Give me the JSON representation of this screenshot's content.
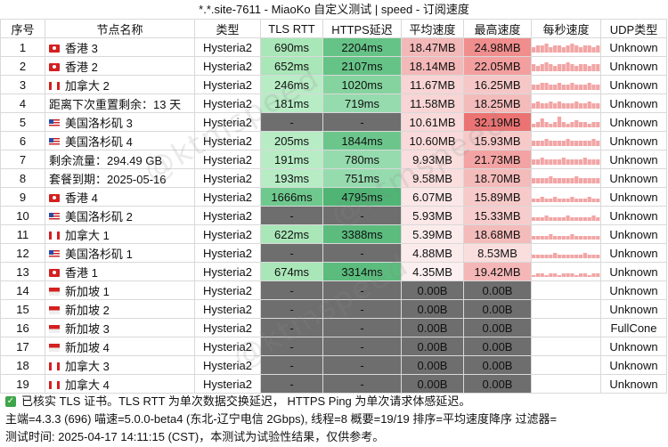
{
  "title": "*.*.site-7611 - MiaoKo 自定义测试 | speed - 订阅速度",
  "columns": [
    "序号",
    "节点名称",
    "类型",
    "TLS RTT",
    "HTTPS延迟",
    "平均速度",
    "最高速度",
    "每秒速度",
    "UDP类型"
  ],
  "rows": [
    {
      "idx": "1",
      "flag": "hk",
      "name": "香港 3",
      "type": "Hysteria2",
      "tls": "690ms",
      "https": "2204ms",
      "avg": "18.47MB",
      "max": "24.98MB",
      "spark": [
        3,
        4,
        4,
        5,
        3,
        4,
        4,
        3,
        4,
        5,
        4,
        3,
        4,
        4,
        3,
        4
      ],
      "udp": "Unknown",
      "tls_bg": "#a9e6b8",
      "https_bg": "#66c387",
      "avg_bg": "#f3b8b8",
      "max_bg": "#f08d8d"
    },
    {
      "idx": "2",
      "flag": "hk",
      "name": "香港 2",
      "type": "Hysteria2",
      "tls": "652ms",
      "https": "2107ms",
      "avg": "18.14MB",
      "max": "22.05MB",
      "spark": [
        4,
        3,
        4,
        5,
        4,
        3,
        4,
        4,
        5,
        4,
        3,
        4,
        4,
        3,
        4,
        4
      ],
      "udp": "Unknown",
      "tls_bg": "#a9e6b8",
      "https_bg": "#66c387",
      "avg_bg": "#f3b8b8",
      "max_bg": "#f39f9f"
    },
    {
      "idx": "3",
      "flag": "ca",
      "name": "加拿大 2",
      "type": "Hysteria2",
      "tls": "246ms",
      "https": "1020ms",
      "avg": "11.67MB",
      "max": "16.25MB",
      "spark": [
        3,
        3,
        4,
        4,
        3,
        3,
        4,
        3,
        3,
        4,
        3,
        3,
        3,
        4,
        3,
        3
      ],
      "udp": "Unknown",
      "tls_bg": "#b7ecc5",
      "https_bg": "#85d49f",
      "avg_bg": "#f8d4d4",
      "max_bg": "#f6c7c7"
    },
    {
      "idx": "4",
      "flag": "",
      "name": "距离下次重置剩余：13 天",
      "type": "Hysteria2",
      "tls": "181ms",
      "https": "719ms",
      "avg": "11.58MB",
      "max": "18.25MB",
      "spark": [
        3,
        4,
        3,
        3,
        4,
        3,
        4,
        3,
        3,
        3,
        4,
        3,
        3,
        4,
        3,
        3
      ],
      "udp": "Unknown",
      "tls_bg": "#b7ecc5",
      "https_bg": "#96dbae",
      "avg_bg": "#f8d4d4",
      "max_bg": "#f4bbbb"
    },
    {
      "idx": "5",
      "flag": "us",
      "name": "美国洛杉矶 3",
      "type": "Hysteria2",
      "tls": "-",
      "https": "-",
      "avg": "10.61MB",
      "max": "32.19MB",
      "spark": [
        2,
        3,
        5,
        3,
        2,
        3,
        6,
        3,
        2,
        3,
        4,
        3,
        3,
        2,
        3,
        3
      ],
      "udp": "Unknown",
      "tls_bg": "#6e6e6e",
      "https_bg": "#6e6e6e",
      "avg_bg": "#f9d9d9",
      "max_bg": "#ec7373"
    },
    {
      "idx": "6",
      "flag": "us",
      "name": "美国洛杉矶 4",
      "type": "Hysteria2",
      "tls": "205ms",
      "https": "1844ms",
      "avg": "10.60MB",
      "max": "15.93MB",
      "spark": [
        3,
        3,
        3,
        4,
        3,
        3,
        3,
        3,
        4,
        3,
        3,
        3,
        3,
        3,
        4,
        3
      ],
      "udp": "Unknown",
      "tls_bg": "#b7ecc5",
      "https_bg": "#6cc68c",
      "avg_bg": "#f9d9d9",
      "max_bg": "#f7c9c9"
    },
    {
      "idx": "7",
      "flag": "",
      "name": "剩余流量：294.49 GB",
      "type": "Hysteria2",
      "tls": "191ms",
      "https": "780ms",
      "avg": "9.93MB",
      "max": "21.73MB",
      "spark": [
        3,
        3,
        4,
        3,
        3,
        3,
        3,
        4,
        3,
        3,
        3,
        3,
        4,
        3,
        3,
        3
      ],
      "udp": "Unknown",
      "tls_bg": "#b7ecc5",
      "https_bg": "#96dbae",
      "avg_bg": "#fadddd",
      "max_bg": "#f3a3a3"
    },
    {
      "idx": "8",
      "flag": "",
      "name": "套餐到期：2025-05-16",
      "type": "Hysteria2",
      "tls": "193ms",
      "https": "751ms",
      "avg": "9.58MB",
      "max": "18.70MB",
      "spark": [
        3,
        3,
        3,
        3,
        4,
        3,
        3,
        3,
        3,
        3,
        4,
        3,
        3,
        3,
        3,
        3
      ],
      "udp": "Unknown",
      "tls_bg": "#b7ecc5",
      "https_bg": "#96dbae",
      "avg_bg": "#fadddd",
      "max_bg": "#f4bbbb"
    },
    {
      "idx": "9",
      "flag": "hk",
      "name": "香港 4",
      "type": "Hysteria2",
      "tls": "1666ms",
      "https": "4795ms",
      "avg": "6.07MB",
      "max": "15.89MB",
      "spark": [
        2,
        2,
        3,
        2,
        2,
        3,
        2,
        2,
        2,
        3,
        2,
        2,
        2,
        3,
        2,
        2
      ],
      "udp": "Unknown",
      "tls_bg": "#6fc98e",
      "https_bg": "#4fb474",
      "avg_bg": "#fbe7e7",
      "max_bg": "#f7c9c9"
    },
    {
      "idx": "10",
      "flag": "us",
      "name": "美国洛杉矶 2",
      "type": "Hysteria2",
      "tls": "-",
      "https": "-",
      "avg": "5.93MB",
      "max": "15.33MB",
      "spark": [
        2,
        2,
        2,
        3,
        2,
        2,
        2,
        2,
        3,
        2,
        2,
        2,
        2,
        2,
        3,
        2
      ],
      "udp": "Unknown",
      "tls_bg": "#6e6e6e",
      "https_bg": "#6e6e6e",
      "avg_bg": "#fbe7e7",
      "max_bg": "#f7cccc"
    },
    {
      "idx": "11",
      "flag": "ca",
      "name": "加拿大 1",
      "type": "Hysteria2",
      "tls": "622ms",
      "https": "3388ms",
      "avg": "5.39MB",
      "max": "18.68MB",
      "spark": [
        2,
        2,
        2,
        2,
        3,
        2,
        2,
        2,
        2,
        3,
        2,
        2,
        2,
        2,
        2,
        2
      ],
      "udp": "Unknown",
      "tls_bg": "#a9e6b8",
      "https_bg": "#5bbc7e",
      "avg_bg": "#fcebeb",
      "max_bg": "#f4bbbb"
    },
    {
      "idx": "12",
      "flag": "us",
      "name": "美国洛杉矶 1",
      "type": "Hysteria2",
      "tls": "-",
      "https": "-",
      "avg": "4.88MB",
      "max": "8.53MB",
      "spark": [
        2,
        2,
        2,
        2,
        2,
        3,
        2,
        2,
        2,
        2,
        2,
        2,
        3,
        2,
        2,
        2
      ],
      "udp": "Unknown",
      "tls_bg": "#6e6e6e",
      "https_bg": "#6e6e6e",
      "avg_bg": "#fcebeb",
      "max_bg": "#fadede"
    },
    {
      "idx": "13",
      "flag": "hk",
      "name": "香港 1",
      "type": "Hysteria2",
      "tls": "674ms",
      "https": "3314ms",
      "avg": "4.35MB",
      "max": "19.42MB",
      "spark": [
        1,
        2,
        2,
        1,
        2,
        2,
        1,
        2,
        2,
        2,
        1,
        2,
        2,
        1,
        2,
        2
      ],
      "udp": "Unknown",
      "tls_bg": "#a9e6b8",
      "https_bg": "#5bbc7e",
      "avg_bg": "#fcefef",
      "max_bg": "#f4b6b6"
    },
    {
      "idx": "14",
      "flag": "sg",
      "name": "新加坡 1",
      "type": "Hysteria2",
      "tls": "-",
      "https": "-",
      "avg": "0.00B",
      "max": "0.00B",
      "spark": [],
      "udp": "Unknown",
      "tls_bg": "#6e6e6e",
      "https_bg": "#6e6e6e",
      "avg_bg": "#6e6e6e",
      "max_bg": "#6e6e6e"
    },
    {
      "idx": "15",
      "flag": "sg",
      "name": "新加坡 2",
      "type": "Hysteria2",
      "tls": "-",
      "https": "-",
      "avg": "0.00B",
      "max": "0.00B",
      "spark": [],
      "udp": "Unknown",
      "tls_bg": "#6e6e6e",
      "https_bg": "#6e6e6e",
      "avg_bg": "#6e6e6e",
      "max_bg": "#6e6e6e"
    },
    {
      "idx": "16",
      "flag": "sg",
      "name": "新加坡 3",
      "type": "Hysteria2",
      "tls": "-",
      "https": "-",
      "avg": "0.00B",
      "max": "0.00B",
      "spark": [],
      "udp": "FullCone",
      "tls_bg": "#6e6e6e",
      "https_bg": "#6e6e6e",
      "avg_bg": "#6e6e6e",
      "max_bg": "#6e6e6e"
    },
    {
      "idx": "17",
      "flag": "sg",
      "name": "新加坡 4",
      "type": "Hysteria2",
      "tls": "-",
      "https": "-",
      "avg": "0.00B",
      "max": "0.00B",
      "spark": [],
      "udp": "Unknown",
      "tls_bg": "#6e6e6e",
      "https_bg": "#6e6e6e",
      "avg_bg": "#6e6e6e",
      "max_bg": "#6e6e6e"
    },
    {
      "idx": "18",
      "flag": "ca",
      "name": "加拿大 3",
      "type": "Hysteria2",
      "tls": "-",
      "https": "-",
      "avg": "0.00B",
      "max": "0.00B",
      "spark": [],
      "udp": "Unknown",
      "tls_bg": "#6e6e6e",
      "https_bg": "#6e6e6e",
      "avg_bg": "#6e6e6e",
      "max_bg": "#6e6e6e"
    },
    {
      "idx": "19",
      "flag": "ca",
      "name": "加拿大 4",
      "type": "Hysteria2",
      "tls": "-",
      "https": "-",
      "avg": "0.00B",
      "max": "0.00B",
      "spark": [],
      "udp": "Unknown",
      "tls_bg": "#6e6e6e",
      "https_bg": "#6e6e6e",
      "avg_bg": "#6e6e6e",
      "max_bg": "#6e6e6e"
    }
  ],
  "footer": {
    "line1": "已核实 TLS 证书。TLS RTT 为单次数据交换延迟， HTTPS Ping 为单次请求体感延迟。",
    "line2": "主端=4.3.3 (696) 喵速=5.0.0-beta4 (东北-辽宁电信 2Gbps), 线程=8 概要=19/19 排序=平均速度降序 过滤器=",
    "line3": "测试时间: 2025-04-17 14:11:15 (CST)，本测试为试验性结果，仅供参考。"
  },
  "watermark": "@ktmspeed",
  "colors": {
    "spark": "#f2a5a5",
    "gray": "#6e6e6e",
    "check": "#3ea64a"
  }
}
